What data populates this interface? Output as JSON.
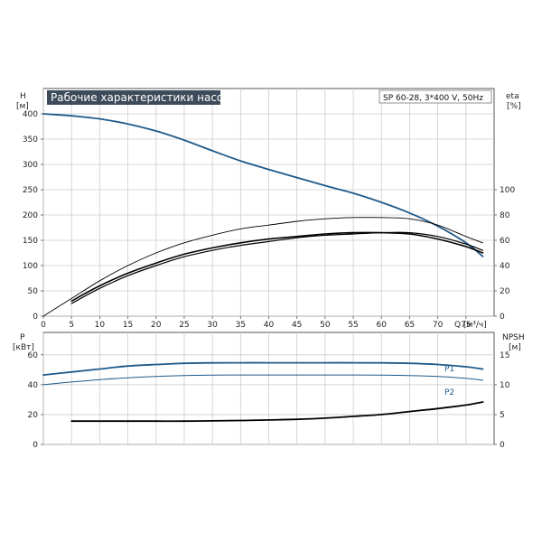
{
  "chart_data": [
    {
      "type": "line",
      "title": "Рабочие характеристики насоса",
      "info": "SP 60-28, 3*400 V, 50Hz",
      "xlabel": "Q [м³/ч]",
      "ylabel_left": [
        "H",
        "[м]"
      ],
      "ylabel_right": [
        "eta",
        "[%]"
      ],
      "xlim": [
        0,
        80
      ],
      "ylim_left": [
        0,
        450
      ],
      "ylim_right": [
        0,
        180
      ],
      "x_ticks": [
        0,
        5,
        10,
        15,
        20,
        25,
        30,
        35,
        40,
        45,
        50,
        55,
        60,
        65,
        70,
        75
      ],
      "y_ticks_left": [
        0,
        50,
        100,
        150,
        200,
        250,
        300,
        350,
        400
      ],
      "y_ticks_right": [
        0,
        20,
        40,
        60,
        80,
        100
      ],
      "grid": true,
      "colors": {
        "head": "#1f5a8a",
        "eta": "#000000",
        "grid": "#cccccc",
        "title_bg": "#3d4b5a"
      },
      "series": [
        {
          "axis": "left",
          "x": [
            0,
            5,
            10,
            15,
            20,
            25,
            30,
            35,
            40,
            45,
            50,
            55,
            60,
            65,
            70,
            75,
            78
          ],
          "values": [
            400,
            396,
            390,
            380,
            366,
            348,
            327,
            307,
            290,
            274,
            258,
            243,
            225,
            204,
            178,
            145,
            118
          ]
        },
        {
          "axis": "right",
          "x": [
            0,
            5,
            10,
            15,
            20,
            25,
            30,
            35,
            40,
            45,
            50,
            55,
            60,
            65,
            70,
            75,
            78
          ],
          "values": [
            0,
            14,
            28,
            40,
            50,
            58,
            64,
            69,
            72,
            75,
            77,
            78,
            78,
            77,
            72,
            63,
            58
          ]
        },
        {
          "axis": "right",
          "x": [
            5,
            10,
            15,
            20,
            25,
            30,
            35,
            40,
            45,
            50,
            55,
            60,
            65,
            70,
            75,
            78
          ],
          "values": [
            12,
            24,
            34,
            42,
            49,
            54,
            58,
            61,
            63,
            65,
            66,
            66,
            65,
            61,
            55,
            50
          ]
        },
        {
          "axis": "right",
          "x": [
            5,
            10,
            15,
            20,
            25,
            30,
            35,
            40,
            45,
            50,
            55,
            60,
            65,
            70,
            75,
            78
          ],
          "values": [
            10,
            22,
            32,
            40,
            47,
            52,
            56,
            59,
            62,
            64,
            65,
            66,
            66,
            63,
            57,
            52
          ]
        }
      ]
    },
    {
      "type": "line",
      "ylabel_left": [
        "P",
        "[кВт]"
      ],
      "ylabel_right": [
        "NPSH",
        "[м]"
      ],
      "xlim": [
        0,
        80
      ],
      "ylim_left": [
        0,
        75
      ],
      "ylim_right": [
        0,
        18.75
      ],
      "y_ticks_left": [
        0,
        20,
        40,
        60
      ],
      "y_ticks_right": [
        0,
        5,
        10
      ],
      "y_ticks_right_top": 15,
      "grid": true,
      "colors": {
        "power": "#1f5a8a",
        "npsh": "#000000"
      },
      "series": [
        {
          "name": "P1",
          "axis": "left",
          "x": [
            0,
            5,
            10,
            15,
            20,
            25,
            30,
            35,
            40,
            45,
            50,
            55,
            60,
            65,
            70,
            75,
            78
          ],
          "values": [
            46.5,
            48.5,
            50.5,
            52.5,
            53.5,
            54.3,
            54.6,
            54.7,
            54.7,
            54.7,
            54.7,
            54.7,
            54.6,
            54.3,
            53.5,
            52,
            50.5
          ]
        },
        {
          "name": "P2",
          "axis": "left",
          "x": [
            0,
            5,
            10,
            15,
            20,
            25,
            30,
            35,
            40,
            45,
            50,
            55,
            60,
            65,
            70,
            75,
            78
          ],
          "values": [
            40,
            41.8,
            43.4,
            44.6,
            45.5,
            46.1,
            46.4,
            46.5,
            46.5,
            46.5,
            46.5,
            46.5,
            46.4,
            46.1,
            45.5,
            44.2,
            43
          ]
        },
        {
          "axis": "right",
          "x": [
            5,
            10,
            15,
            20,
            25,
            30,
            35,
            40,
            45,
            50,
            55,
            60,
            65,
            70,
            75,
            78
          ],
          "values": [
            3.9,
            3.9,
            3.9,
            3.9,
            3.9,
            3.95,
            4.0,
            4.1,
            4.2,
            4.4,
            4.7,
            5.0,
            5.5,
            6.0,
            6.6,
            7.1
          ]
        }
      ]
    }
  ]
}
